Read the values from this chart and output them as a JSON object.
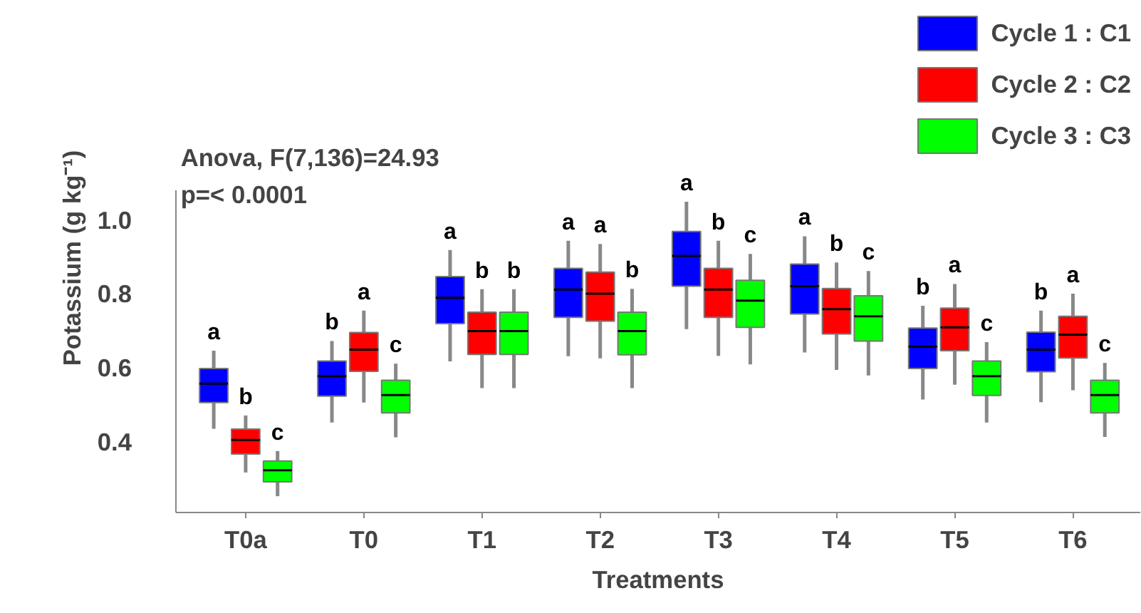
{
  "chart_data": {
    "type": "box",
    "xlabel": "Treatments",
    "ylabel": "Potassium (g kg⁻¹)",
    "categories": [
      "T0a",
      "T0",
      "T1",
      "T2",
      "T3",
      "T4",
      "T5",
      "T6"
    ],
    "ylim": [
      0.21,
      1.08
    ],
    "yticks": [
      0.4,
      0.6,
      0.8,
      {
        "value": 1.0,
        "label": "1.0"
      }
    ],
    "grid": false,
    "legend": "top right",
    "annotations": [
      "Anova, F(7,136)=24.93",
      "p=< 0.0001"
    ],
    "series": [
      {
        "name": "Cycle 1 : C1",
        "color": "#0000ff",
        "value_labels": [
          "a",
          "b",
          "a",
          "a",
          "a",
          "a",
          "b",
          "b"
        ],
        "boxes": [
          {
            "low": 0.436,
            "q1": 0.507,
            "median": 0.558,
            "q3": 0.599,
            "high": 0.647
          },
          {
            "low": 0.453,
            "q1": 0.524,
            "median": 0.578,
            "q3": 0.619,
            "high": 0.673
          },
          {
            "low": 0.618,
            "q1": 0.72,
            "median": 0.79,
            "q3": 0.847,
            "high": 0.919
          },
          {
            "low": 0.632,
            "q1": 0.737,
            "median": 0.812,
            "q3": 0.869,
            "high": 0.944
          },
          {
            "low": 0.705,
            "q1": 0.821,
            "median": 0.903,
            "q3": 0.969,
            "high": 1.049
          },
          {
            "low": 0.642,
            "q1": 0.746,
            "median": 0.821,
            "q3": 0.881,
            "high": 0.956
          },
          {
            "low": 0.515,
            "q1": 0.599,
            "median": 0.658,
            "q3": 0.708,
            "high": 0.768
          },
          {
            "low": 0.508,
            "q1": 0.59,
            "median": 0.65,
            "q3": 0.697,
            "high": 0.755
          }
        ]
      },
      {
        "name": "Cycle 2 : C2",
        "color": "#ff0000",
        "value_labels": [
          "b",
          "a",
          "b",
          "a",
          "b",
          "b",
          "a",
          "a"
        ],
        "boxes": [
          {
            "low": 0.318,
            "q1": 0.368,
            "median": 0.406,
            "q3": 0.435,
            "high": 0.472
          },
          {
            "low": 0.507,
            "q1": 0.591,
            "median": 0.65,
            "q3": 0.696,
            "high": 0.755
          },
          {
            "low": 0.546,
            "q1": 0.637,
            "median": 0.7,
            "q3": 0.751,
            "high": 0.813
          },
          {
            "low": 0.626,
            "q1": 0.727,
            "median": 0.801,
            "q3": 0.859,
            "high": 0.935
          },
          {
            "low": 0.633,
            "q1": 0.737,
            "median": 0.812,
            "q3": 0.869,
            "high": 0.944
          },
          {
            "low": 0.595,
            "q1": 0.692,
            "median": 0.759,
            "q3": 0.815,
            "high": 0.885
          },
          {
            "low": 0.555,
            "q1": 0.647,
            "median": 0.71,
            "q3": 0.762,
            "high": 0.827
          },
          {
            "low": 0.54,
            "q1": 0.627,
            "median": 0.69,
            "q3": 0.74,
            "high": 0.801
          }
        ]
      },
      {
        "name": "Cycle 3 : C3",
        "color": "#00ff00",
        "value_labels": [
          "c",
          "c",
          "b",
          "b",
          "c",
          "c",
          "c",
          "c"
        ],
        "boxes": [
          {
            "low": 0.254,
            "q1": 0.293,
            "median": 0.324,
            "q3": 0.349,
            "high": 0.376
          },
          {
            "low": 0.413,
            "q1": 0.479,
            "median": 0.527,
            "q3": 0.567,
            "high": 0.612
          },
          {
            "low": 0.546,
            "q1": 0.637,
            "median": 0.7,
            "q3": 0.751,
            "high": 0.813
          },
          {
            "low": 0.546,
            "q1": 0.636,
            "median": 0.7,
            "q3": 0.751,
            "high": 0.814
          },
          {
            "low": 0.61,
            "q1": 0.71,
            "median": 0.782,
            "q3": 0.837,
            "high": 0.908
          },
          {
            "low": 0.58,
            "q1": 0.673,
            "median": 0.74,
            "q3": 0.795,
            "high": 0.862
          },
          {
            "low": 0.453,
            "q1": 0.526,
            "median": 0.578,
            "q3": 0.619,
            "high": 0.67
          },
          {
            "low": 0.414,
            "q1": 0.479,
            "median": 0.527,
            "q3": 0.567,
            "high": 0.614
          }
        ]
      }
    ]
  }
}
